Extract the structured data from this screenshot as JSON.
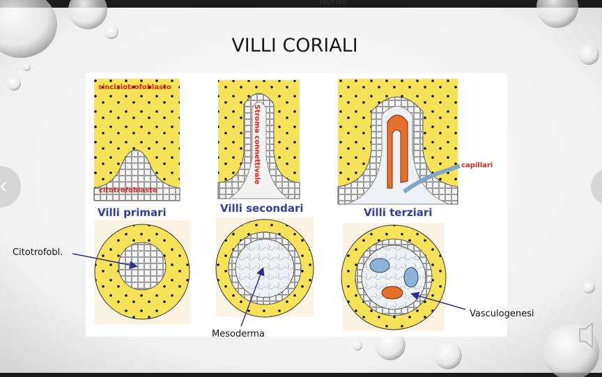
{
  "top_bar": {
    "label": "Nome"
  },
  "title": "VILLI CORIALI",
  "figure": {
    "inner_labels": {
      "syncytio": "sinciziotrofoblasto",
      "cyto": "citotrofoblasto",
      "stroma": "Stroma connettivale",
      "capillaries": "capillari"
    },
    "captions": [
      "Villi primari",
      "Villi secondari",
      "Villi terziari"
    ]
  },
  "annotations": {
    "left": "Citotrofobl.",
    "middle": "Mesoderma",
    "right": "Vasculogenesi"
  }
}
